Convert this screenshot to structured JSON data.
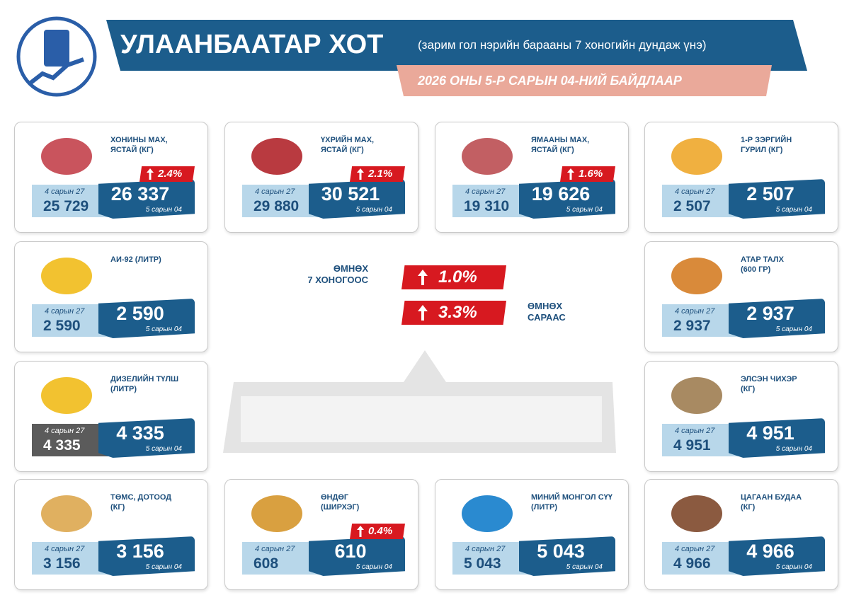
{
  "header": {
    "title": "УЛААНБААТАР ХОТ",
    "subtitle": "(зарим гол нэрийн барааны 7 хоногийн дундаж үнэ)",
    "date": "2026 ОНЫ 5-Р САРЫН 04-НИЙ БАЙДЛААР"
  },
  "summary": {
    "week_label": "ӨМНӨХ\n7 ХОНОГООС",
    "week_change": "1.0%",
    "month_label": "ӨМНӨХ\nСАРААС",
    "month_change": "3.3%"
  },
  "items": [
    {
      "name": "ХОНИНЫ МАХ,\nЯСТАЙ (КГ)",
      "prev_label": "4 сарын 27",
      "prev": "25 729",
      "curr": "26 337",
      "curr_label": "5 сарын 04",
      "change": "2.4%"
    },
    {
      "name": "ҮХРИЙН МАХ,\nЯСТАЙ (КГ)",
      "prev_label": "4 сарын 27",
      "prev": "29 880",
      "curr": "30 521",
      "curr_label": "5 сарын 04",
      "change": "2.1%"
    },
    {
      "name": "ЯМААНЫ МАХ,\nЯСТАЙ (КГ)",
      "prev_label": "4 сарын 27",
      "prev": "19 310",
      "curr": "19 626",
      "curr_label": "5 сарын 04",
      "change": "1.6%"
    },
    {
      "name": "1-Р ЗЭРГИЙН\nГУРИЛ (КГ)",
      "prev_label": "4 сарын 27",
      "prev": "2 507",
      "curr": "2 507",
      "curr_label": "5 сарын 04"
    },
    {
      "name": "АИ-92 (ЛИТР)",
      "prev_label": "4 сарын 27",
      "prev": "2 590",
      "curr": "2 590",
      "curr_label": "5 сарын 04"
    },
    {
      "name": "АТАР ТАЛХ\n (600 ГР)",
      "prev_label": "4 сарын 27",
      "prev": "2 937",
      "curr": "2 937",
      "curr_label": "5 сарын 04"
    },
    {
      "name": "ДИЗЕЛИЙН ТҮЛШ\n(ЛИТР)",
      "prev_label": "4 сарын 27",
      "prev": "4 335",
      "curr": "4 335",
      "curr_label": "5 сарын 04"
    },
    {
      "name": "ЭЛСЭН ЧИХЭР\n(КГ)",
      "prev_label": "4 сарын 27",
      "prev": "4 951",
      "curr": "4 951",
      "curr_label": "5 сарын 04"
    },
    {
      "name": "ТӨМС, ДОТООД\n(КГ)",
      "prev_label": "4 сарын 27",
      "prev": "3 156",
      "curr": "3 156",
      "curr_label": "5 сарын 04"
    },
    {
      "name": "ӨНДӨГ\n(ШИРХЭГ)",
      "prev_label": "4 сарын 27",
      "prev": "608",
      "curr": "610",
      "curr_label": "5 сарын 04",
      "change": "0.4%"
    },
    {
      "name": "МИНИЙ МОНГОЛ СҮҮ\n(ЛИТР)",
      "prev_label": "4 сарын 27",
      "prev": "5 043",
      "curr": "5 043",
      "curr_label": "5 сарын 04"
    },
    {
      "name": "ЦАГААН БУДАА\n(КГ)",
      "prev_label": "4 сарын 27",
      "prev": "4 966",
      "curr": "4 966",
      "curr_label": "5 сарын 04"
    }
  ]
}
